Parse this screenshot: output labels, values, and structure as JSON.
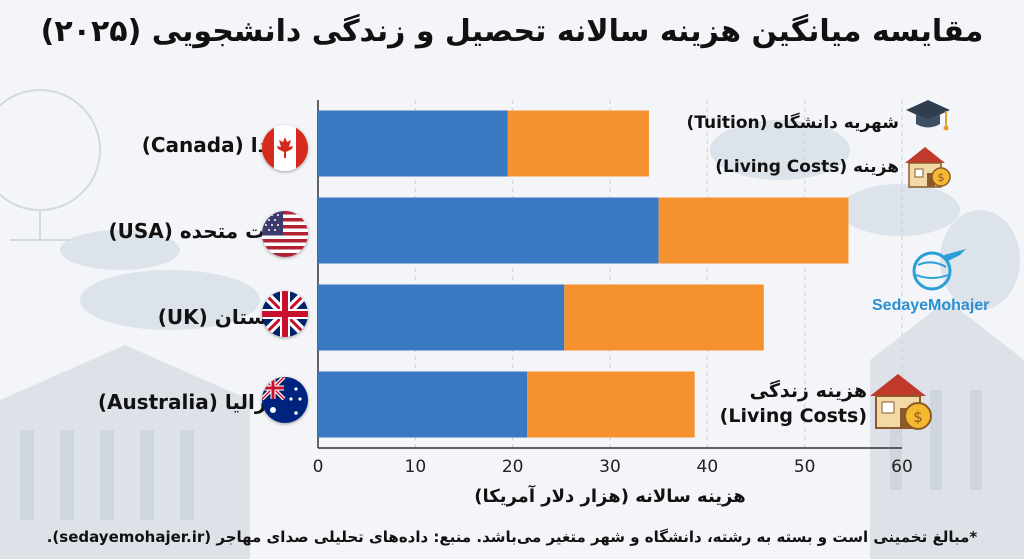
{
  "title": "مقایسه میانگین هزینه سالانه تحصیل و زندگی دانشجویی (۲۰۲۵)",
  "chart_data": {
    "type": "bar",
    "orientation": "horizontal",
    "stacked": true,
    "categories": [
      "کانادا (Canada)",
      "ایالات متحده (USA)",
      "انگلستان (UK)",
      "استرالیا (Australia)"
    ],
    "series": [
      {
        "name": "شهریه دانشگاه (Tuition)",
        "color": "#3a78c2",
        "values": [
          19.5,
          35,
          25.3,
          21.5
        ]
      },
      {
        "name": "هزینه (Living Costs)",
        "color": "#f5922f",
        "values": [
          14.5,
          19.5,
          20.5,
          17.2
        ]
      }
    ],
    "xlabel": "هزینه سالانه (هزار دلار آمریکا)",
    "xlim": [
      0,
      60
    ],
    "xticks": [
      0,
      10,
      20,
      30,
      40,
      50,
      60
    ],
    "grid": true,
    "legend_position": "right"
  },
  "legend": {
    "tuition": "شهریه دانشگاه (Tuition)",
    "living": "هزینه (Living Costs)",
    "living_big_line1": "هزینه زندگی",
    "living_big_line2": "(Living Costs)"
  },
  "flags": [
    "canada-flag-icon",
    "usa-flag-icon",
    "uk-flag-icon",
    "australia-flag-icon"
  ],
  "brand": "SedayeMohajer",
  "footnote": "*مبالغ تخمینی است و بسته به رشته، دانشگاه و شهر متغیر می‌باشد. منبع: داده‌های تحلیلی صدای مهاجر (sedayemohajer.ir)."
}
